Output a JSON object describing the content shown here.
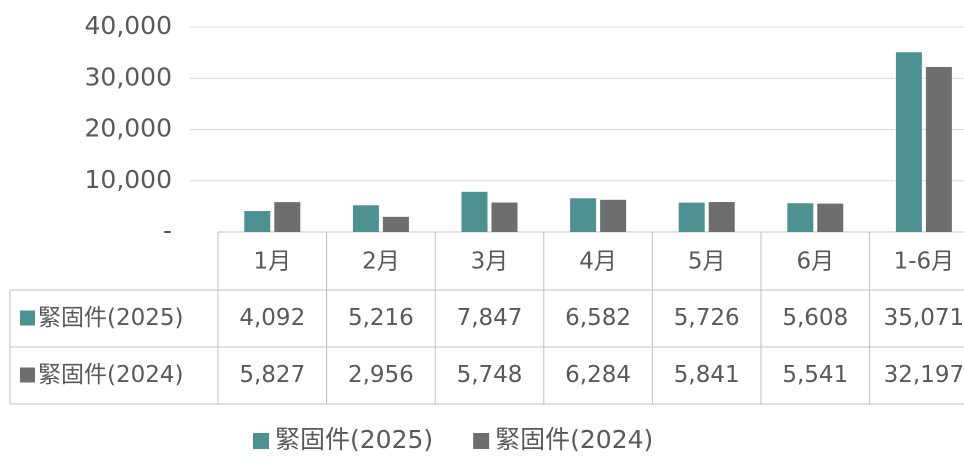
{
  "chart_data": {
    "type": "bar",
    "categories": [
      "1月",
      "2月",
      "3月",
      "4月",
      "5月",
      "6月",
      "1-6月"
    ],
    "series": [
      {
        "name": "緊固件(2025)",
        "color": "#4e9191",
        "values": [
          4092,
          5216,
          7847,
          6582,
          5726,
          5608,
          35071
        ],
        "value_labels": [
          "4,092",
          "5,216",
          "7,847",
          "6,582",
          "5,726",
          "5,608",
          "35,071"
        ]
      },
      {
        "name": "緊固件(2024)",
        "color": "#6e6e6e",
        "values": [
          5827,
          2956,
          5748,
          6284,
          5841,
          5541,
          32197
        ],
        "value_labels": [
          "5,827",
          "2,956",
          "5,748",
          "6,284",
          "5,841",
          "5,541",
          "32,197"
        ]
      }
    ],
    "ylim": [
      0,
      40000
    ],
    "yticks": [
      {
        "value": 0,
        "label": "-"
      },
      {
        "value": 10000,
        "label": "10,000"
      },
      {
        "value": 20000,
        "label": "20,000"
      },
      {
        "value": 30000,
        "label": "30,000"
      },
      {
        "value": 40000,
        "label": "40,000"
      }
    ],
    "grid": true,
    "legend": "bottom"
  }
}
